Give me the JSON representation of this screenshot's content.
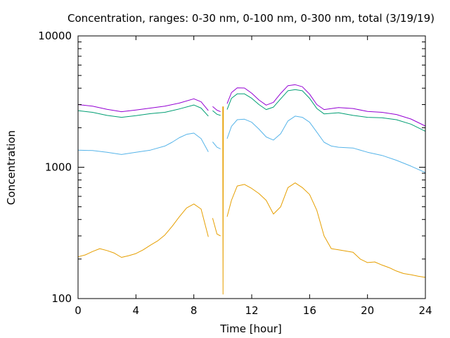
{
  "chart_data": {
    "type": "line",
    "title": "Concentration, ranges: 0-30 nm, 0-100 nm, 0-300 nm, total (3/19/19)",
    "xlabel": "Time [hour]",
    "ylabel": "Concentration",
    "xlim": [
      0,
      24
    ],
    "ylim": [
      100,
      10000
    ],
    "yscale": "log",
    "x_ticks": [
      0,
      4,
      8,
      12,
      16,
      20,
      24
    ],
    "x_tick_labels": [
      "0",
      "4",
      "8",
      "12",
      "16",
      "20",
      "24"
    ],
    "y_ticks": [
      100,
      1000,
      10000
    ],
    "y_tick_labels": [
      "100",
      "1000",
      "10000"
    ],
    "grid": false,
    "legend": "none",
    "series": [
      {
        "color": "#e69f00",
        "segments": [
          [
            [
              0,
              208
            ],
            [
              0.5,
              215
            ],
            [
              1,
              228
            ],
            [
              1.5,
              240
            ],
            [
              2,
              232
            ],
            [
              2.5,
              222
            ],
            [
              3,
              206
            ],
            [
              3.5,
              212
            ],
            [
              4,
              220
            ],
            [
              4.5,
              235
            ],
            [
              5,
              255
            ],
            [
              5.5,
              275
            ],
            [
              6,
              305
            ],
            [
              6.5,
              355
            ],
            [
              7,
              420
            ],
            [
              7.5,
              490
            ],
            [
              8,
              525
            ],
            [
              8.5,
              480
            ],
            [
              9,
              295
            ]
          ],
          [
            [
              9.3,
              410
            ],
            [
              9.6,
              310
            ],
            [
              9.85,
              300
            ]
          ],
          [
            [
              10.3,
              420
            ],
            [
              10.6,
              560
            ],
            [
              11,
              720
            ],
            [
              11.5,
              740
            ],
            [
              12,
              690
            ],
            [
              12.5,
              630
            ],
            [
              13,
              560
            ],
            [
              13.5,
              440
            ],
            [
              14,
              500
            ],
            [
              14.5,
              700
            ],
            [
              15,
              760
            ],
            [
              15.5,
              700
            ],
            [
              16,
              620
            ],
            [
              16.5,
              470
            ],
            [
              17,
              300
            ],
            [
              17.5,
              240
            ],
            [
              18,
              235
            ],
            [
              18.5,
              230
            ],
            [
              19,
              225
            ],
            [
              19.5,
              200
            ],
            [
              20,
              188
            ],
            [
              20.5,
              190
            ],
            [
              21,
              180
            ],
            [
              21.5,
              172
            ],
            [
              22,
              162
            ],
            [
              22.5,
              155
            ],
            [
              23,
              152
            ],
            [
              23.5,
              148
            ],
            [
              24,
              145
            ]
          ]
        ]
      },
      {
        "color": "#56b4e9",
        "segments": [
          [
            [
              0,
              1350
            ],
            [
              1,
              1340
            ],
            [
              2,
              1300
            ],
            [
              3,
              1250
            ],
            [
              4,
              1300
            ],
            [
              5,
              1350
            ],
            [
              6,
              1450
            ],
            [
              6.5,
              1550
            ],
            [
              7,
              1680
            ],
            [
              7.5,
              1780
            ],
            [
              8,
              1820
            ],
            [
              8.5,
              1650
            ],
            [
              9,
              1310
            ]
          ],
          [
            [
              9.3,
              1560
            ],
            [
              9.6,
              1420
            ],
            [
              9.85,
              1380
            ]
          ],
          [
            [
              10.3,
              1650
            ],
            [
              10.6,
              2050
            ],
            [
              11,
              2300
            ],
            [
              11.5,
              2320
            ],
            [
              12,
              2200
            ],
            [
              12.5,
              1950
            ],
            [
              13,
              1700
            ],
            [
              13.5,
              1610
            ],
            [
              14,
              1800
            ],
            [
              14.5,
              2250
            ],
            [
              15,
              2450
            ],
            [
              15.5,
              2400
            ],
            [
              16,
              2200
            ],
            [
              16.5,
              1850
            ],
            [
              17,
              1550
            ],
            [
              17.5,
              1450
            ],
            [
              18,
              1420
            ],
            [
              19,
              1400
            ],
            [
              20,
              1300
            ],
            [
              21,
              1230
            ],
            [
              22,
              1130
            ],
            [
              23,
              1020
            ],
            [
              24,
              910
            ]
          ]
        ]
      },
      {
        "color": "#009e73",
        "segments": [
          [
            [
              0,
              2700
            ],
            [
              1,
              2620
            ],
            [
              2,
              2480
            ],
            [
              3,
              2400
            ],
            [
              4,
              2470
            ],
            [
              5,
              2560
            ],
            [
              6,
              2620
            ],
            [
              7,
              2780
            ],
            [
              8,
              2980
            ],
            [
              8.5,
              2820
            ],
            [
              9,
              2450
            ]
          ],
          [
            [
              9.3,
              2700
            ],
            [
              9.6,
              2530
            ],
            [
              9.85,
              2480
            ]
          ],
          [
            [
              10.3,
              2750
            ],
            [
              10.6,
              3350
            ],
            [
              11,
              3620
            ],
            [
              11.5,
              3620
            ],
            [
              12,
              3350
            ],
            [
              12.5,
              3000
            ],
            [
              13,
              2750
            ],
            [
              13.5,
              2870
            ],
            [
              14,
              3320
            ],
            [
              14.5,
              3820
            ],
            [
              15,
              3900
            ],
            [
              15.5,
              3820
            ],
            [
              16,
              3350
            ],
            [
              16.5,
              2800
            ],
            [
              17,
              2550
            ],
            [
              18,
              2600
            ],
            [
              19,
              2480
            ],
            [
              20,
              2400
            ],
            [
              21,
              2380
            ],
            [
              22,
              2300
            ],
            [
              23,
              2130
            ],
            [
              24,
              1880
            ]
          ]
        ]
      },
      {
        "color": "#9400d3",
        "segments": [
          [
            [
              0,
              3000
            ],
            [
              1,
              2920
            ],
            [
              2,
              2760
            ],
            [
              3,
              2650
            ],
            [
              4,
              2730
            ],
            [
              5,
              2820
            ],
            [
              6,
              2920
            ],
            [
              7,
              3080
            ],
            [
              8,
              3320
            ],
            [
              8.5,
              3150
            ],
            [
              9,
              2700
            ]
          ],
          [
            [
              9.3,
              2900
            ],
            [
              9.6,
              2720
            ],
            [
              9.85,
              2650
            ]
          ],
          [
            [
              10.3,
              3050
            ],
            [
              10.6,
              3700
            ],
            [
              11,
              4020
            ],
            [
              11.5,
              4010
            ],
            [
              12,
              3660
            ],
            [
              12.5,
              3250
            ],
            [
              13,
              2970
            ],
            [
              13.5,
              3120
            ],
            [
              14,
              3650
            ],
            [
              14.5,
              4180
            ],
            [
              15,
              4250
            ],
            [
              15.5,
              4100
            ],
            [
              16,
              3600
            ],
            [
              16.5,
              3000
            ],
            [
              17,
              2750
            ],
            [
              18,
              2850
            ],
            [
              19,
              2800
            ],
            [
              20,
              2660
            ],
            [
              21,
              2620
            ],
            [
              22,
              2520
            ],
            [
              23,
              2330
            ],
            [
              24,
              2060
            ]
          ]
        ]
      },
      {
        "color": "#e69f00",
        "segments": [
          [
            [
              10.0,
              2900
            ],
            [
              10.02,
              108
            ],
            [
              10.04,
              2900
            ]
          ]
        ]
      }
    ]
  }
}
